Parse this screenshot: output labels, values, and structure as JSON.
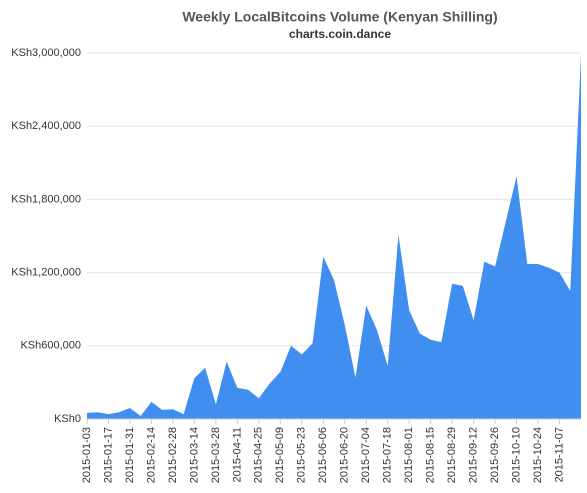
{
  "chart_data": {
    "type": "area",
    "title": "Weekly LocalBitcoins Volume (Kenyan Shilling)",
    "subtitle": "charts.coin.dance",
    "categories": [
      "2015-01-03",
      null,
      "2015-01-17",
      null,
      "2015-01-31",
      null,
      "2015-02-14",
      null,
      "2015-02-28",
      null,
      "2015-03-14",
      null,
      "2015-03-28",
      null,
      "2015-04-11",
      null,
      "2015-04-25",
      null,
      "2015-05-09",
      null,
      "2015-05-23",
      null,
      "2015-06-06",
      null,
      "2015-06-20",
      null,
      "2015-07-04",
      null,
      "2015-07-18",
      null,
      "2015-08-01",
      null,
      "2015-08-15",
      null,
      "2015-08-29",
      null,
      "2015-09-12",
      null,
      "2015-09-26",
      null,
      "2015-10-10",
      null,
      "2015-10-24",
      null,
      "2015-11-07",
      null,
      null
    ],
    "values": [
      50000,
      55000,
      40000,
      55000,
      90000,
      25000,
      140000,
      75000,
      80000,
      40000,
      335000,
      420000,
      120000,
      470000,
      255000,
      240000,
      170000,
      290000,
      385000,
      600000,
      530000,
      620000,
      1330000,
      1140000,
      770000,
      340000,
      930000,
      730000,
      435000,
      1510000,
      890000,
      700000,
      650000,
      630000,
      1110000,
      1090000,
      810000,
      1290000,
      1250000,
      1620000,
      1990000,
      1270000,
      1270000,
      1240000,
      1200000,
      1050000,
      2980000
    ],
    "color": "#3f8ef0",
    "ylim": [
      0,
      3000000
    ],
    "yticks": [
      {
        "value": 0,
        "label": "KSh0"
      },
      {
        "value": 600000,
        "label": "KSh600,000"
      },
      {
        "value": 1200000,
        "label": "KSh1,200,000"
      },
      {
        "value": 1800000,
        "label": "KSh1,800,000"
      },
      {
        "value": 2400000,
        "label": "KSh2,400,000"
      },
      {
        "value": 3000000,
        "label": "KSh3,000,000"
      }
    ],
    "grid": true
  }
}
